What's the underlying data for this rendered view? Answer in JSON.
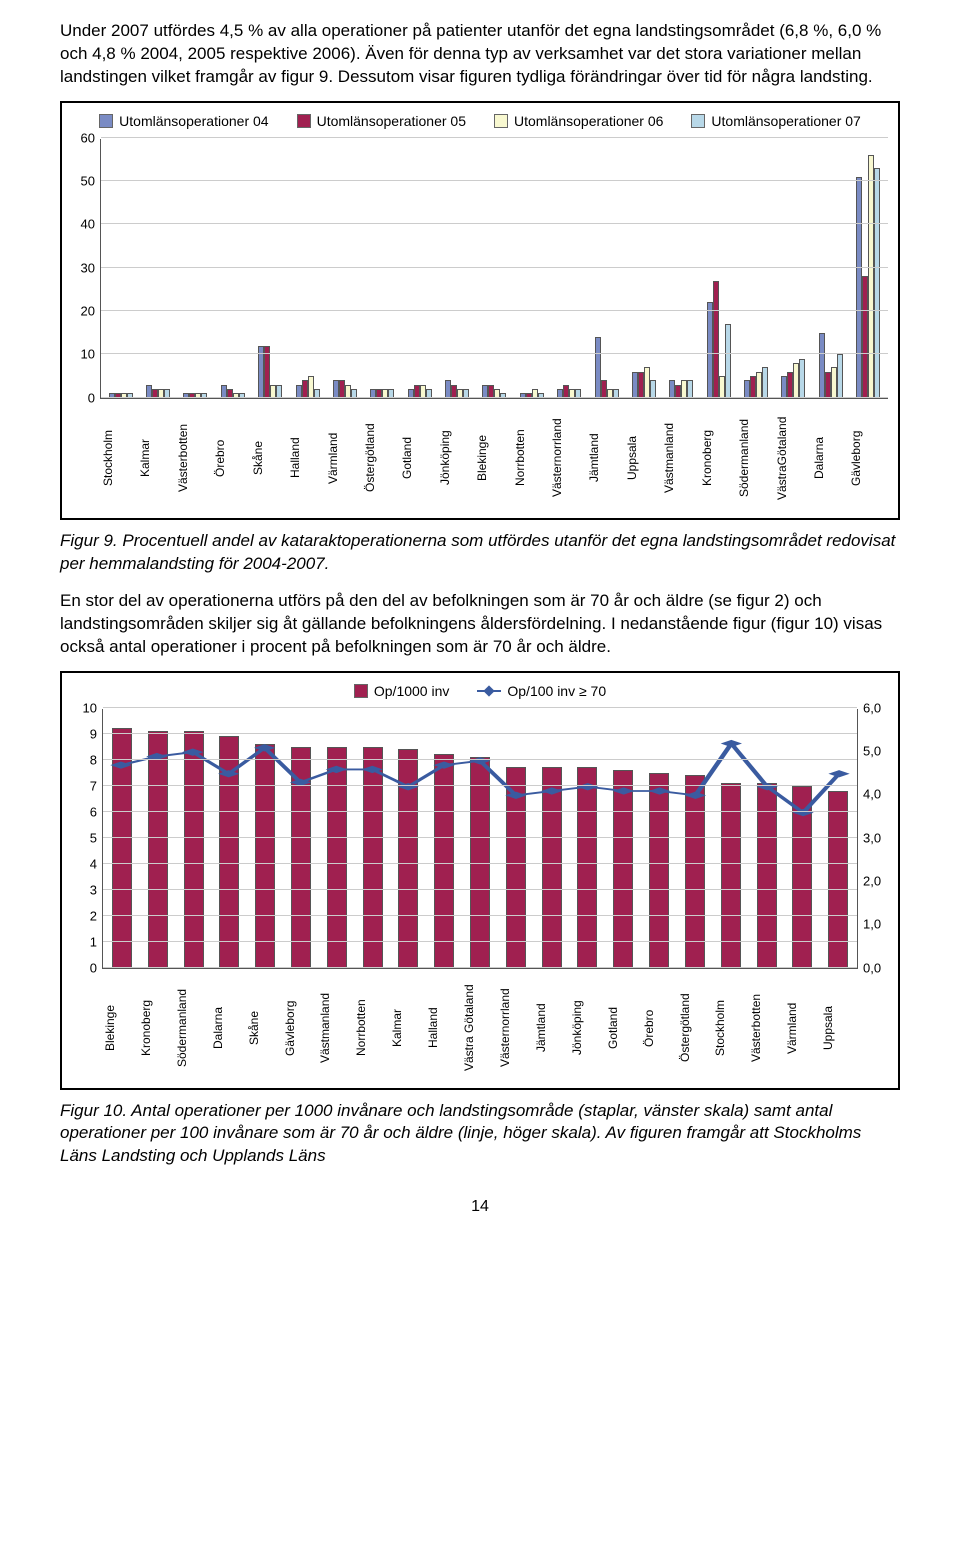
{
  "para1": "Under 2007 utfördes 4,5 % av alla operationer på patienter utanför det egna landstingsområdet (6,8 %, 6,0 % och 4,8 % 2004, 2005 respektive 2006). Även för denna typ av verksamhet var det stora variationer mellan landstingen vilket framgår av figur 9. Dessutom visar figuren tydliga förändringar över tid för några landsting.",
  "figure9": {
    "type": "bar",
    "legend_labels": [
      "Utomlänsoperationer 04",
      "Utomlänsoperationer 05",
      "Utomlänsoperationer 06",
      "Utomlänsoperationer 07"
    ],
    "series_colors": [
      "#7a8bc4",
      "#a02050",
      "#f8f8d0",
      "#b8d8e8"
    ],
    "background_color": "#ffffff",
    "grid_color": "#cccccc",
    "ylim": [
      0,
      60
    ],
    "yticks": [
      0,
      10,
      20,
      30,
      40,
      50,
      60
    ],
    "categories": [
      "Stockholm",
      "Kalmar",
      "Västerbotten",
      "Örebro",
      "Skåne",
      "Halland",
      "Värmland",
      "Östergötland",
      "Gotland",
      "Jönköping",
      "Blekinge",
      "Norrbotten",
      "Västernorrland",
      "Jämtland",
      "Uppsala",
      "Västmanland",
      "Kronoberg",
      "Södermanland",
      "VästraGötaland",
      "Dalarna",
      "Gävleborg"
    ],
    "values": [
      [
        1,
        1,
        1,
        1
      ],
      [
        3,
        2,
        2,
        2
      ],
      [
        1,
        1,
        1,
        1
      ],
      [
        3,
        2,
        1,
        1
      ],
      [
        12,
        12,
        3,
        3
      ],
      [
        3,
        4,
        5,
        2
      ],
      [
        4,
        4,
        3,
        2
      ],
      [
        2,
        2,
        2,
        2
      ],
      [
        2,
        3,
        3,
        2
      ],
      [
        4,
        3,
        2,
        2
      ],
      [
        3,
        3,
        2,
        1
      ],
      [
        1,
        1,
        2,
        1
      ],
      [
        2,
        3,
        2,
        2
      ],
      [
        14,
        4,
        2,
        2
      ],
      [
        6,
        6,
        7,
        4
      ],
      [
        4,
        3,
        4,
        4
      ],
      [
        22,
        27,
        5,
        17
      ],
      [
        4,
        5,
        6,
        7
      ],
      [
        5,
        6,
        8,
        9
      ],
      [
        15,
        6,
        7,
        10
      ],
      [
        51,
        28,
        56,
        53
      ]
    ]
  },
  "figure9_caption": "Figur 9. Procentuell andel av kataraktoperationerna som utfördes utanför det egna landstingsområdet redovisat per hemmalandsting för 2004-2007.",
  "para2": "En stor del av operationerna utförs på den del av befolkningen som är 70 år och äldre (se figur 2) och landstingsområden skiljer sig åt gällande befolkningens åldersfördelning. I nedanstående figur (figur 10) visas också antal operationer i procent på befolkningen som är 70 år och äldre.",
  "figure10": {
    "type": "bar-line",
    "legend_bar_label": "Op/1000 inv",
    "legend_line_label": "Op/100 inv ≥ 70",
    "bar_color": "#a02050",
    "line_color": "#3a5ba0",
    "marker_color": "#3a5ba0",
    "background_color": "#ffffff",
    "grid_color": "#cccccc",
    "ylim_left": [
      0,
      10
    ],
    "yticks_left": [
      0,
      1,
      2,
      3,
      4,
      5,
      6,
      7,
      8,
      9,
      10
    ],
    "ylim_right": [
      0.0,
      6.0
    ],
    "yticks_right": [
      "0,0",
      "1,0",
      "2,0",
      "3,0",
      "4,0",
      "5,0",
      "6,0"
    ],
    "categories": [
      "Blekinge",
      "Kronoberg",
      "Södermanland",
      "Dalarna",
      "Skåne",
      "Gävleborg",
      "Västmanland",
      "Norrbotten",
      "Kalmar",
      "Halland",
      "Västra Götaland",
      "Västernorrland",
      "Jämtland",
      "Jönköping",
      "Gotland",
      "Örebro",
      "Östergötland",
      "Stockholm",
      "Västerbotten",
      "Värmland",
      "Uppsala"
    ],
    "bar_values": [
      9.2,
      9.1,
      9.1,
      8.9,
      8.6,
      8.5,
      8.5,
      8.5,
      8.4,
      8.2,
      8.1,
      7.7,
      7.7,
      7.7,
      7.6,
      7.5,
      7.4,
      7.1,
      7.1,
      7.0,
      6.8
    ],
    "line_values": [
      4.7,
      4.9,
      5.0,
      4.5,
      5.1,
      4.3,
      4.6,
      4.6,
      4.2,
      4.7,
      4.8,
      4.0,
      4.1,
      4.2,
      4.1,
      4.1,
      4.0,
      5.2,
      4.2,
      3.6,
      4.5
    ]
  },
  "figure10_caption": "Figur 10. Antal operationer per 1000 invånare och landstingsområde (staplar, vänster skala) samt antal operationer per 100 invånare som är 70 år och äldre (linje, höger skala). Av figuren framgår att Stockholms Läns Landsting och Upplands Läns",
  "page_number": "14"
}
